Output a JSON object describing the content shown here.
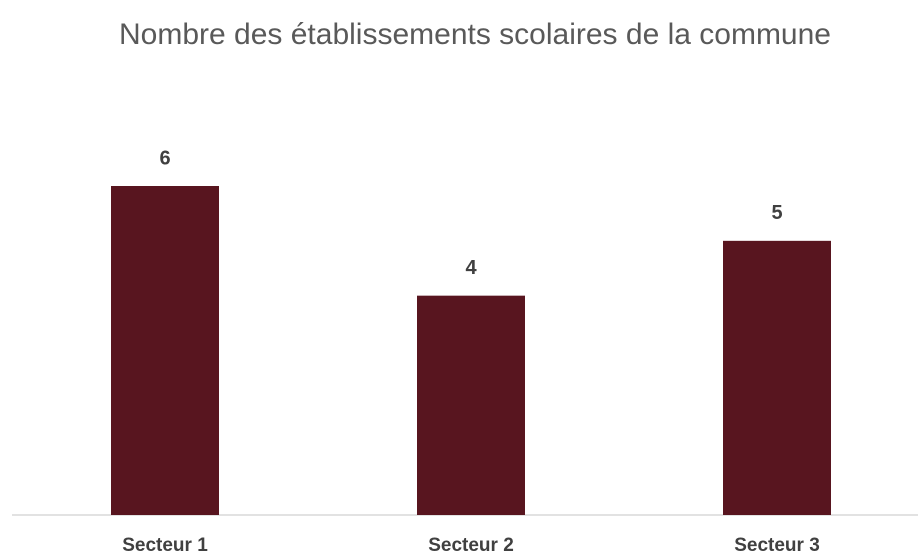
{
  "chart_data": {
    "type": "bar",
    "title": "Nombre des établissements scolaires de la commune",
    "categories": [
      "Secteur 1",
      "Secteur 2",
      "Secteur 3"
    ],
    "values": [
      6,
      4,
      5
    ],
    "color": "#58151f"
  }
}
